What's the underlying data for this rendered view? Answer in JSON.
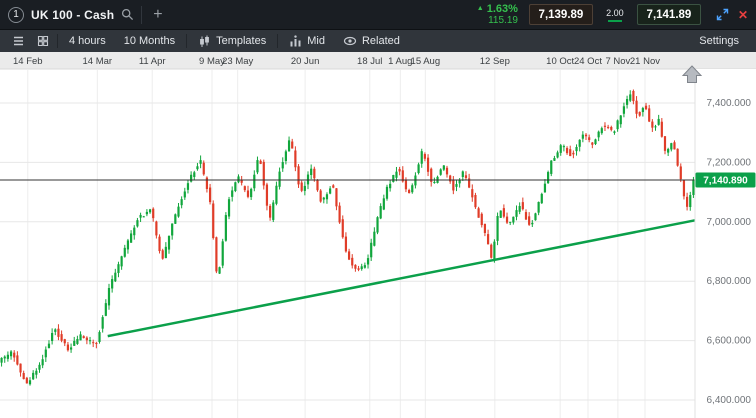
{
  "header": {
    "tab_number": "1",
    "instrument_name": "UK 100 - Cash",
    "add_tab_label": "+",
    "change_percent": "1.63%",
    "change_points": "115.19",
    "sell_price": "7,139.89",
    "spread": "2.00",
    "buy_price": "7,141.89"
  },
  "icons": {
    "up_triangle_glyph": "▲",
    "close_glyph": "✕"
  },
  "toolbar": {
    "interval_label": "4 hours",
    "range_label": "10 Months",
    "templates_label": "Templates",
    "price_type_label": "Mid",
    "related_label": "Related",
    "settings_label": "Settings"
  },
  "colors": {
    "positive_green": "#35c04e",
    "expand_icon_blue": "#4da3ff",
    "close_icon_red": "#e84040",
    "badge_green": "#0ba04a"
  },
  "chart_data": {
    "type": "candlestick",
    "instrument": "UK 100 - Cash",
    "interval": "4 hours",
    "range": "10 Months",
    "current_price": 7140.89,
    "current_price_label": "7,140.890",
    "hline_price": 7140.89,
    "grid": true,
    "x_ticks": [
      [
        "14 Feb",
        0.04
      ],
      [
        "14 Mar",
        0.14
      ],
      [
        "11 Apr",
        0.219
      ],
      [
        "9 May",
        0.305
      ],
      [
        "23 May",
        0.342
      ],
      [
        "20 Jun",
        0.439
      ],
      [
        "18 Jul",
        0.532
      ],
      [
        "1 Aug",
        0.576
      ],
      [
        "15 Aug",
        0.612
      ],
      [
        "12 Sep",
        0.712
      ],
      [
        "10 Oct",
        0.806
      ],
      [
        "24 Oct",
        0.846
      ],
      [
        "7 Nov",
        0.889
      ],
      [
        "21 Nov",
        0.928
      ]
    ],
    "y_ticks": [
      [
        "7,400.000",
        7400
      ],
      [
        "7,200.000",
        7200
      ],
      [
        "7,000.000",
        7000
      ],
      [
        "6,800.000",
        6800
      ],
      [
        "6,600.000",
        6600
      ],
      [
        "6,400.000",
        6400
      ]
    ],
    "ylim": [
      6340,
      7518
    ],
    "num_candles": 220,
    "candle_noise": {
      "body": 14,
      "wick": 16
    },
    "anchors": [
      [
        0.0,
        6530
      ],
      [
        0.02,
        6560
      ],
      [
        0.04,
        6450
      ],
      [
        0.06,
        6520
      ],
      [
        0.08,
        6640
      ],
      [
        0.1,
        6570
      ],
      [
        0.12,
        6620
      ],
      [
        0.14,
        6580
      ],
      [
        0.16,
        6780
      ],
      [
        0.18,
        6900
      ],
      [
        0.2,
        7010
      ],
      [
        0.22,
        7040
      ],
      [
        0.235,
        6860
      ],
      [
        0.25,
        6990
      ],
      [
        0.27,
        7120
      ],
      [
        0.29,
        7210
      ],
      [
        0.305,
        7060
      ],
      [
        0.315,
        6790
      ],
      [
        0.33,
        7070
      ],
      [
        0.345,
        7150
      ],
      [
        0.36,
        7080
      ],
      [
        0.375,
        7230
      ],
      [
        0.39,
        7000
      ],
      [
        0.405,
        7180
      ],
      [
        0.42,
        7280
      ],
      [
        0.435,
        7090
      ],
      [
        0.45,
        7180
      ],
      [
        0.465,
        7060
      ],
      [
        0.48,
        7130
      ],
      [
        0.5,
        6900
      ],
      [
        0.515,
        6830
      ],
      [
        0.53,
        6860
      ],
      [
        0.545,
        7010
      ],
      [
        0.56,
        7120
      ],
      [
        0.575,
        7180
      ],
      [
        0.59,
        7090
      ],
      [
        0.6,
        7160
      ],
      [
        0.61,
        7240
      ],
      [
        0.625,
        7120
      ],
      [
        0.64,
        7190
      ],
      [
        0.655,
        7110
      ],
      [
        0.67,
        7170
      ],
      [
        0.685,
        7060
      ],
      [
        0.7,
        6960
      ],
      [
        0.71,
        6870
      ],
      [
        0.72,
        7050
      ],
      [
        0.735,
        6990
      ],
      [
        0.75,
        7060
      ],
      [
        0.765,
        6980
      ],
      [
        0.78,
        7080
      ],
      [
        0.795,
        7200
      ],
      [
        0.81,
        7260
      ],
      [
        0.825,
        7220
      ],
      [
        0.84,
        7300
      ],
      [
        0.855,
        7260
      ],
      [
        0.87,
        7330
      ],
      [
        0.885,
        7300
      ],
      [
        0.9,
        7390
      ],
      [
        0.91,
        7440
      ],
      [
        0.92,
        7350
      ],
      [
        0.93,
        7400
      ],
      [
        0.94,
        7310
      ],
      [
        0.95,
        7340
      ],
      [
        0.96,
        7230
      ],
      [
        0.97,
        7270
      ],
      [
        0.98,
        7160
      ],
      [
        0.99,
        7040
      ],
      [
        1.0,
        7140.89
      ]
    ],
    "trendline": {
      "from": {
        "t": 0.155,
        "price": 6615
      },
      "to": {
        "t": 1.0,
        "price": 7005
      }
    },
    "colors": {
      "up": "#11a63c",
      "down": "#e03c28",
      "trend": "#0ba04a",
      "hline": "#333333",
      "badge": "#0ba04a"
    }
  }
}
